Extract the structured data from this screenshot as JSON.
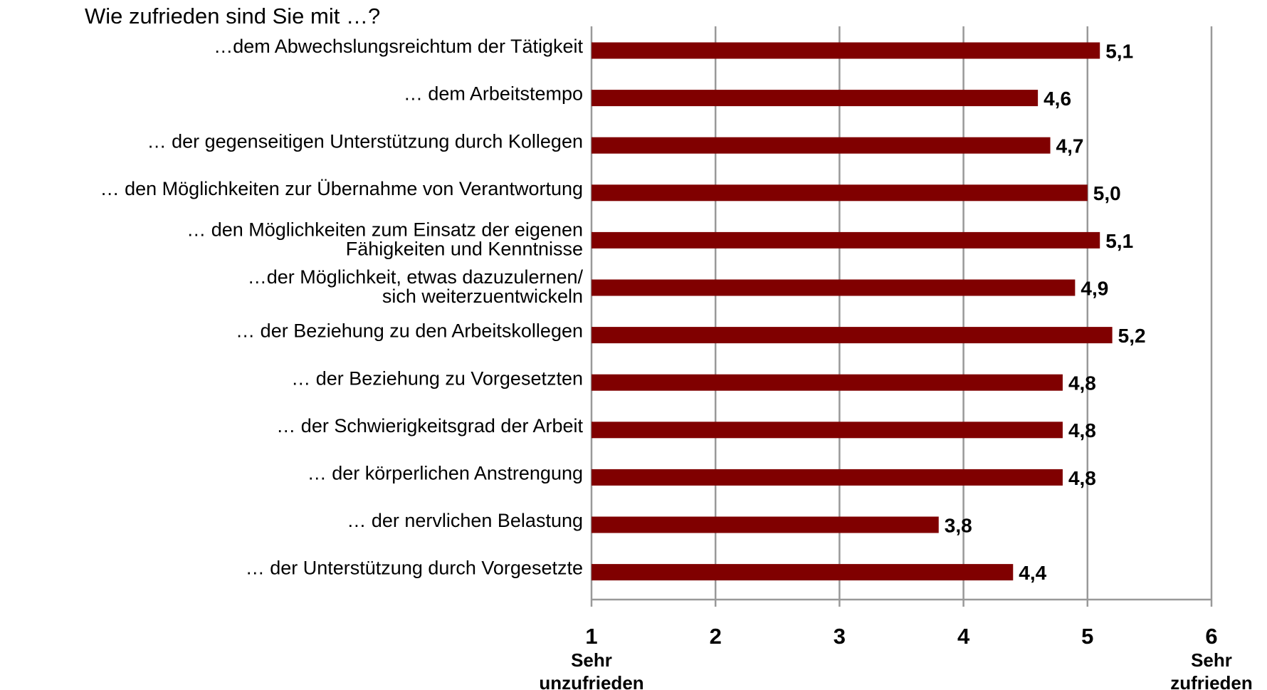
{
  "chart_data": {
    "type": "bar",
    "orientation": "horizontal",
    "title": "Wie zufrieden sind Sie mit …?",
    "categories": [
      "…dem Abwechslungsreichtum der Tätigkeit",
      "… dem Arbeitstempo",
      "… der gegenseitigen Unterstützung durch Kollegen",
      "… den Möglichkeiten zur Übernahme von Verantwortung",
      [
        "… den Möglichkeiten zum Einsatz der eigenen",
        "Fähigkeiten und Kenntnisse"
      ],
      [
        "…der Möglichkeit, etwas dazuzulernen/",
        "sich weiterzuentwickeln"
      ],
      "… der Beziehung zu den Arbeitskollegen",
      "… der Beziehung zu Vorgesetzten",
      "… der Schwierigkeitsgrad der Arbeit",
      "… der körperlichen Anstrengung",
      "… der nervlichen Belastung",
      "… der Unterstützung durch Vorgesetzte"
    ],
    "values": [
      5.1,
      4.6,
      4.7,
      5.0,
      5.1,
      4.9,
      5.2,
      4.8,
      4.8,
      4.8,
      3.8,
      4.4
    ],
    "value_labels": [
      "5,1",
      "4,6",
      "4,7",
      "5,0",
      "5,1",
      "4,9",
      "5,2",
      "4,8",
      "4,8",
      "4,8",
      "3,8",
      "4,4"
    ],
    "color": "#800000",
    "xlim": [
      1,
      6
    ],
    "xticks": [
      1,
      2,
      3,
      4,
      5,
      6
    ],
    "grid": true,
    "annotations": {
      "left": [
        "Sehr",
        "unzufrieden"
      ],
      "right": [
        "Sehr",
        "zufrieden"
      ]
    }
  }
}
